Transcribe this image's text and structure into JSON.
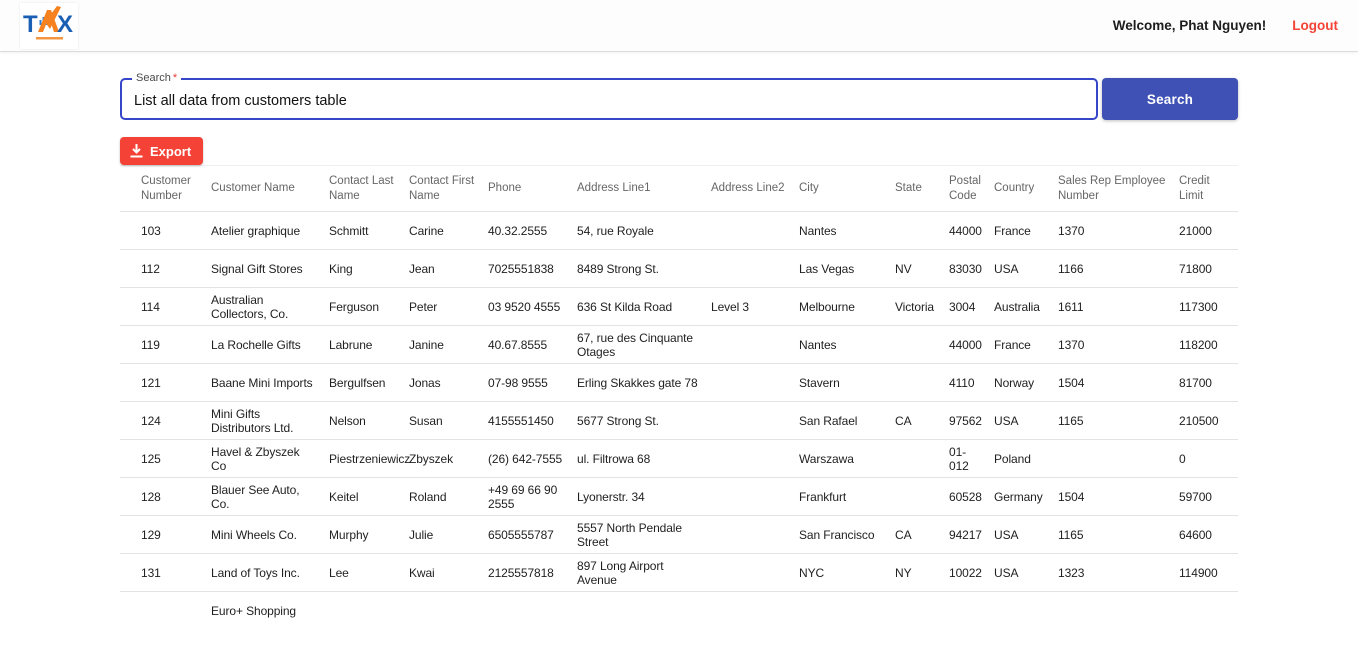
{
  "header": {
    "logo_text": "TAX",
    "welcome": "Welcome, Phat Nguyen!",
    "logout": "Logout"
  },
  "search": {
    "label": "Search",
    "required_mark": "*",
    "value": "List all data from customers table",
    "button_label": "Search"
  },
  "toolbar": {
    "export_label": "Export"
  },
  "colors": {
    "accent_indigo": "#3f51b5",
    "focus_outline_blue": "#3646c8",
    "danger_red": "#f44336"
  },
  "table": {
    "columns": [
      "Customer Number",
      "Customer Name",
      "Contact Last Name",
      "Contact First Name",
      "Phone",
      "Address Line1",
      "Address Line2",
      "City",
      "State",
      "Postal Code",
      "Country",
      "Sales Rep Employee Number",
      "Credit Limit"
    ],
    "rows": [
      [
        "103",
        "Atelier graphique",
        "Schmitt",
        "Carine",
        "40.32.2555",
        "54, rue Royale",
        "",
        "Nantes",
        "",
        "44000",
        "France",
        "1370",
        "21000"
      ],
      [
        "112",
        "Signal Gift Stores",
        "King",
        "Jean",
        "7025551838",
        "8489 Strong St.",
        "",
        "Las Vegas",
        "NV",
        "83030",
        "USA",
        "1166",
        "71800"
      ],
      [
        "114",
        "Australian Collectors, Co.",
        "Ferguson",
        "Peter",
        "03 9520 4555",
        "636 St Kilda Road",
        "Level 3",
        "Melbourne",
        "Victoria",
        "3004",
        "Australia",
        "1611",
        "117300"
      ],
      [
        "119",
        "La Rochelle Gifts",
        "Labrune",
        "Janine",
        "40.67.8555",
        "67, rue des Cinquante Otages",
        "",
        "Nantes",
        "",
        "44000",
        "France",
        "1370",
        "118200"
      ],
      [
        "121",
        "Baane Mini Imports",
        "Bergulfsen",
        "Jonas",
        "07-98 9555",
        "Erling Skakkes gate 78",
        "",
        "Stavern",
        "",
        "4110",
        "Norway",
        "1504",
        "81700"
      ],
      [
        "124",
        "Mini Gifts Distributors Ltd.",
        "Nelson",
        "Susan",
        "4155551450",
        "5677 Strong St.",
        "",
        "San Rafael",
        "CA",
        "97562",
        "USA",
        "1165",
        "210500"
      ],
      [
        "125",
        "Havel & Zbyszek Co",
        "Piestrzeniewicz",
        "Zbyszek",
        "(26) 642-7555",
        "ul. Filtrowa 68",
        "",
        "Warszawa",
        "",
        "01-012",
        "Poland",
        "",
        "0"
      ],
      [
        "128",
        "Blauer See Auto, Co.",
        "Keitel",
        "Roland",
        "+49 69 66 90 2555",
        "Lyonerstr. 34",
        "",
        "Frankfurt",
        "",
        "60528",
        "Germany",
        "1504",
        "59700"
      ],
      [
        "129",
        "Mini Wheels Co.",
        "Murphy",
        "Julie",
        "6505555787",
        "5557 North Pendale Street",
        "",
        "San Francisco",
        "CA",
        "94217",
        "USA",
        "1165",
        "64600"
      ],
      [
        "131",
        "Land of Toys Inc.",
        "Lee",
        "Kwai",
        "2125557818",
        "897 Long Airport Avenue",
        "",
        "NYC",
        "NY",
        "10022",
        "USA",
        "1323",
        "114900"
      ],
      [
        "",
        "Euro+ Shopping",
        "",
        "",
        "",
        "",
        "",
        "",
        "",
        "",
        "",
        "",
        ""
      ]
    ]
  }
}
